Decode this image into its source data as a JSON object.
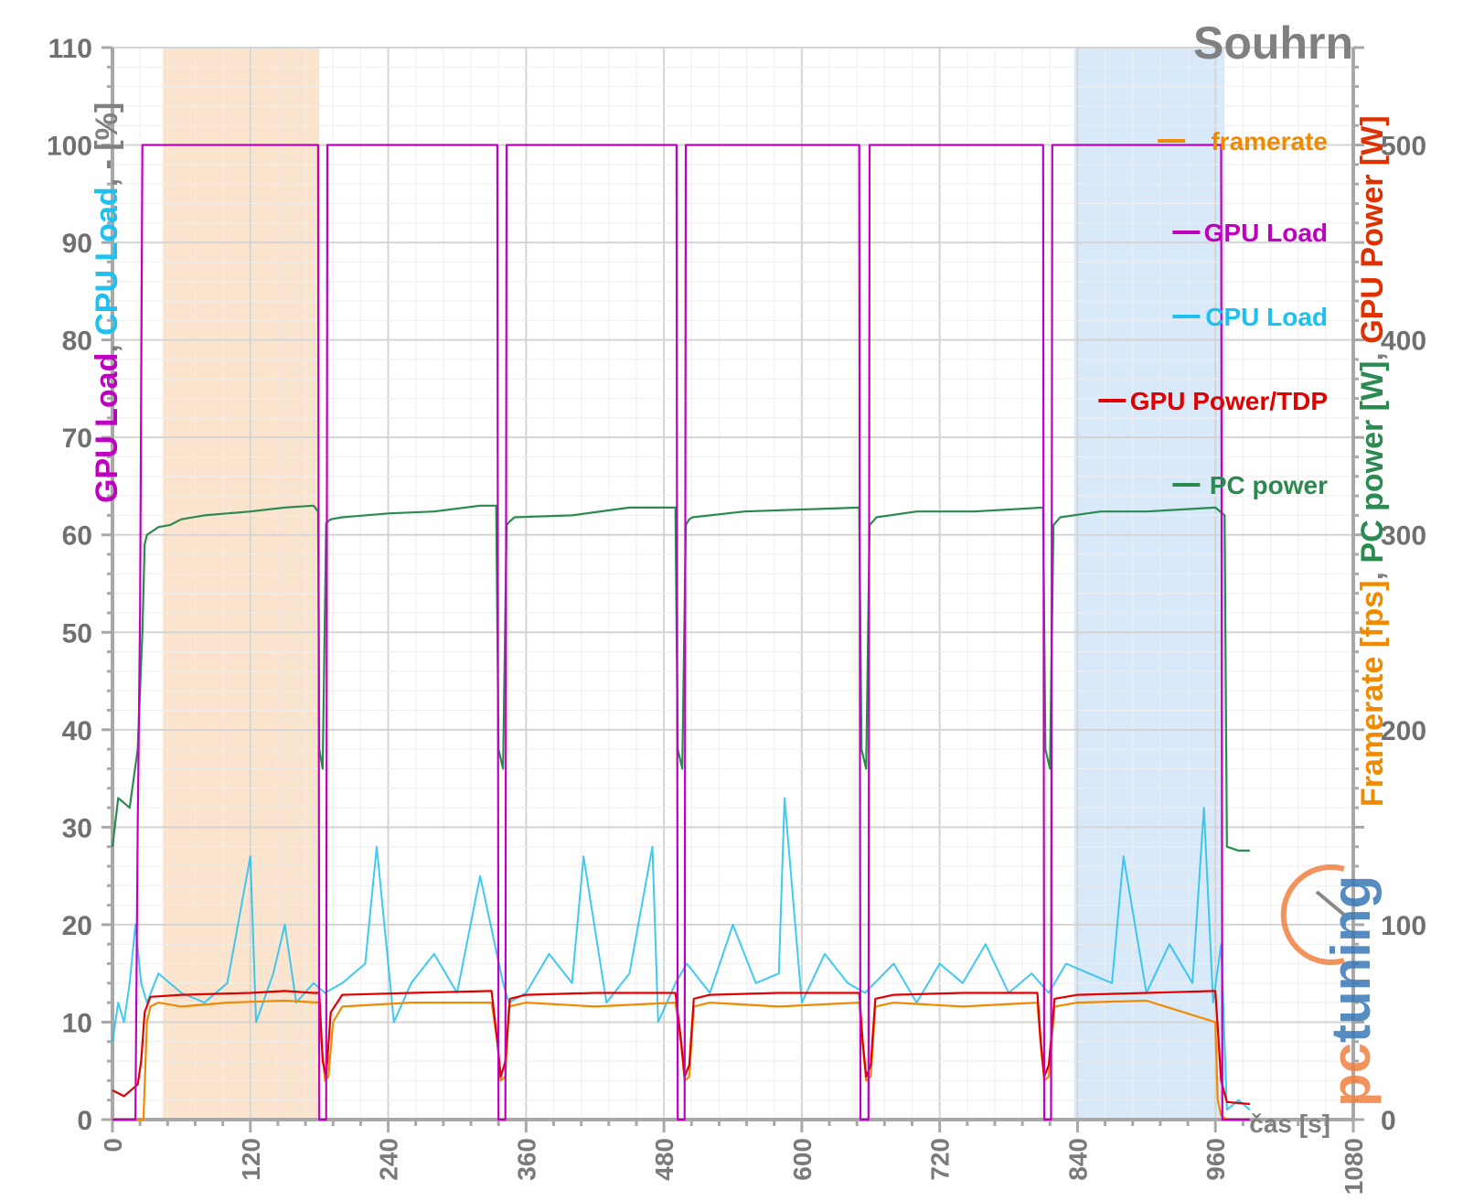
{
  "chart_data": {
    "type": "line",
    "title": "Souhrn",
    "xlabel": "čas [s]",
    "x_ticks": [
      "0",
      "120",
      "240",
      "360",
      "480",
      "600",
      "720",
      "840",
      "960",
      "1080"
    ],
    "xlim": [
      0,
      1080
    ],
    "grid": true,
    "left_axis": {
      "ylim": [
        0,
        110
      ],
      "ticks": [
        "0",
        "10",
        "20",
        "30",
        "40",
        "50",
        "60",
        "70",
        "80",
        "90",
        "100",
        "110"
      ],
      "label_parts": [
        {
          "text": "GPU Load",
          "color": "#c000c0"
        },
        {
          "text": ", ",
          "color": "#808080"
        },
        {
          "text": "CPU Load",
          "color": "#1ec0f0"
        },
        {
          "text": ", - [%]",
          "color": "#808080"
        }
      ]
    },
    "right_axis": {
      "ylim": [
        0,
        550
      ],
      "ticks": [
        "0",
        "100",
        "200",
        "300",
        "400",
        "500"
      ],
      "label_parts": [
        {
          "text": "Framerate [fps]",
          "color": "#f08a00"
        },
        {
          "text": ", ",
          "color": "#808080"
        },
        {
          "text": "PC power [W]",
          "color": "#2a8a50"
        },
        {
          "text": ", ",
          "color": "#808080"
        },
        {
          "text": "GPU Power [W]",
          "color": "#e03000"
        }
      ]
    },
    "highlight_regions": [
      {
        "x": [
          44,
          180
        ],
        "color": "#fbe1c9"
      },
      {
        "x": [
          837,
          968
        ],
        "color": "#d4e7f8"
      }
    ],
    "legend_position": "top-right",
    "series": [
      {
        "name": "framerate",
        "color": "#f08a00",
        "axis": "right",
        "x": [
          0,
          22,
          27,
          30,
          33,
          40,
          60,
          100,
          150,
          180,
          182,
          185,
          188,
          192,
          200,
          260,
          330,
          335,
          338,
          342,
          345,
          360,
          420,
          490,
          495,
          498,
          502,
          506,
          520,
          580,
          650,
          653,
          656,
          660,
          664,
          680,
          740,
          805,
          808,
          811,
          815,
          820,
          840,
          900,
          960,
          962,
          965,
          970,
          990
        ],
        "y": [
          0,
          0,
          0,
          50,
          58,
          60,
          58,
          60,
          61,
          60,
          40,
          20,
          22,
          50,
          58,
          60,
          60,
          40,
          20,
          22,
          58,
          60,
          58,
          60,
          38,
          20,
          22,
          58,
          60,
          58,
          60,
          38,
          20,
          22,
          58,
          60,
          58,
          60,
          38,
          20,
          22,
          58,
          60,
          61,
          50,
          10,
          2,
          0,
          0
        ]
      },
      {
        "name": "GPU Load",
        "color": "#c000c0",
        "axis": "left",
        "x": [
          0,
          20,
          22,
          24,
          26,
          27,
          179,
          180,
          186,
          187,
          335,
          336,
          342,
          343,
          491,
          492,
          498,
          499,
          650,
          651,
          658,
          659,
          810,
          811,
          817,
          818,
          965,
          966,
          990
        ],
        "y": [
          0,
          0,
          30,
          52,
          100,
          100,
          100,
          0,
          0,
          100,
          100,
          0,
          0,
          100,
          100,
          0,
          0,
          100,
          100,
          0,
          0,
          100,
          100,
          0,
          0,
          100,
          100,
          0,
          0
        ]
      },
      {
        "name": "CPU Load",
        "color": "#1ec0f0",
        "axis": "left",
        "x": [
          0,
          5,
          10,
          15,
          20,
          25,
          30,
          40,
          60,
          80,
          100,
          120,
          125,
          140,
          150,
          160,
          175,
          185,
          200,
          220,
          230,
          245,
          260,
          280,
          300,
          320,
          340,
          345,
          360,
          380,
          400,
          410,
          430,
          450,
          470,
          475,
          490,
          500,
          520,
          540,
          560,
          580,
          585,
          600,
          620,
          640,
          655,
          680,
          700,
          720,
          740,
          760,
          780,
          800,
          815,
          830,
          850,
          870,
          880,
          900,
          920,
          940,
          950,
          958,
          965,
          970,
          980,
          990
        ],
        "y": [
          8,
          12,
          10,
          14,
          20,
          14,
          12,
          15,
          13,
          12,
          14,
          27,
          10,
          15,
          20,
          12,
          14,
          13,
          14,
          16,
          28,
          10,
          14,
          17,
          13,
          25,
          14,
          12,
          13,
          17,
          14,
          27,
          12,
          15,
          28,
          10,
          14,
          16,
          13,
          20,
          14,
          15,
          33,
          12,
          17,
          14,
          13,
          16,
          12,
          16,
          14,
          18,
          13,
          15,
          13,
          16,
          15,
          14,
          27,
          13,
          18,
          14,
          32,
          12,
          18,
          1,
          2,
          1
        ]
      },
      {
        "name": "GPU Power/TDP",
        "color": "#e00000",
        "axis": "right",
        "x": [
          0,
          10,
          22,
          25,
          28,
          33,
          60,
          120,
          150,
          175,
          180,
          183,
          186,
          190,
          200,
          260,
          330,
          335,
          338,
          342,
          346,
          360,
          420,
          490,
          495,
          498,
          502,
          506,
          520,
          580,
          650,
          653,
          656,
          660,
          664,
          680,
          740,
          805,
          808,
          811,
          815,
          820,
          840,
          900,
          960,
          965,
          970,
          990
        ],
        "y": [
          15,
          12,
          18,
          30,
          55,
          63,
          64,
          65,
          66,
          65,
          65,
          30,
          22,
          55,
          64,
          65,
          66,
          40,
          22,
          30,
          62,
          64,
          65,
          65,
          40,
          22,
          28,
          62,
          64,
          65,
          65,
          40,
          22,
          28,
          62,
          64,
          65,
          65,
          40,
          22,
          28,
          62,
          64,
          65,
          66,
          20,
          9,
          8
        ]
      },
      {
        "name": "PC power",
        "color": "#2a8a50",
        "axis": "right",
        "x": [
          0,
          5,
          15,
          22,
          26,
          28,
          30,
          35,
          40,
          50,
          60,
          80,
          100,
          120,
          150,
          175,
          179,
          180,
          183,
          186,
          190,
          200,
          240,
          280,
          320,
          334,
          336,
          340,
          343,
          346,
          350,
          400,
          450,
          490,
          492,
          496,
          499,
          502,
          505,
          550,
          600,
          650,
          652,
          656,
          659,
          662,
          665,
          700,
          750,
          810,
          812,
          816,
          819,
          822,
          825,
          860,
          900,
          960,
          968,
          970,
          980,
          990
        ],
        "y": [
          140,
          165,
          160,
          190,
          250,
          295,
          300,
          302,
          304,
          305,
          308,
          310,
          311,
          312,
          314,
          315,
          312,
          190,
          180,
          306,
          308,
          309,
          311,
          312,
          315,
          315,
          190,
          180,
          305,
          307,
          309,
          310,
          314,
          314,
          190,
          180,
          305,
          308,
          309,
          312,
          313,
          314,
          190,
          180,
          305,
          307,
          309,
          312,
          312,
          314,
          190,
          180,
          305,
          307,
          309,
          312,
          312,
          314,
          310,
          140,
          138,
          138
        ]
      }
    ]
  },
  "watermark": "pctuning"
}
